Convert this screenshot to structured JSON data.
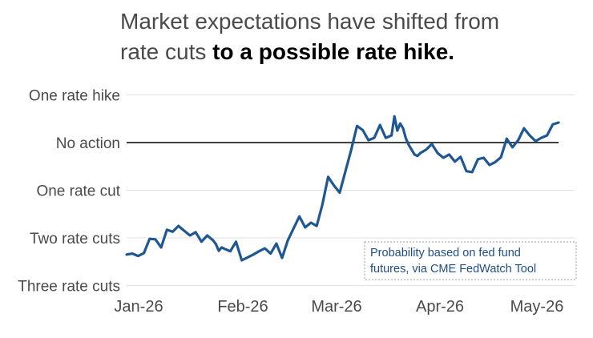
{
  "title": {
    "line1": "Market expectations have shifted from",
    "line2_plain": "rate cuts ",
    "line2_bold": "to a possible rate hike."
  },
  "note": {
    "line1": "Probability based on fed fund",
    "line2": "futures, via CME FedWatch Tool"
  },
  "colors": {
    "series": "#1f5793",
    "reference_line": "#000000",
    "grid": "#e0e0e0"
  },
  "chart_data": {
    "type": "line",
    "y_tick_values": [
      -3,
      -2,
      -1,
      0,
      1
    ],
    "y_tick_labels": [
      "Three rate cuts",
      "Two rate cuts",
      "One rate cut",
      "No action",
      "One rate hike"
    ],
    "x_tick_labels": [
      "Jan-26",
      "Feb-26",
      "Mar-26",
      "Apr-26",
      "May-26"
    ],
    "ylim": [
      -3.0,
      1.0
    ],
    "reference_y": 0,
    "grid": true,
    "series": [
      {
        "x": [
          0,
          2,
          4,
          6,
          8,
          10,
          12,
          14,
          16,
          18,
          20,
          22,
          24,
          26,
          28,
          30,
          31,
          32,
          33,
          34,
          36,
          38,
          40,
          42,
          44,
          46,
          48,
          50,
          52,
          54,
          56,
          58,
          60,
          62,
          64,
          66,
          68,
          70,
          72,
          74,
          76,
          78,
          80,
          82,
          84,
          86,
          88,
          90,
          92,
          93,
          94,
          95,
          96,
          97,
          98,
          99,
          100,
          101,
          102,
          104,
          106,
          108,
          110,
          112,
          114,
          116,
          118,
          120,
          122,
          124,
          126,
          128,
          130,
          132,
          134,
          136,
          138,
          140,
          142,
          144,
          146,
          148,
          150
        ],
        "y": [
          -2.35,
          -2.33,
          -2.38,
          -2.32,
          -2.02,
          -2.03,
          -2.2,
          -1.83,
          -1.87,
          -1.75,
          -1.85,
          -1.95,
          -1.88,
          -2.08,
          -1.95,
          -2.05,
          -2.13,
          -2.27,
          -2.2,
          -2.23,
          -2.28,
          -2.08,
          -2.47,
          -2.41,
          -2.35,
          -2.28,
          -2.22,
          -2.33,
          -2.12,
          -2.42,
          -2.05,
          -1.8,
          -1.55,
          -1.78,
          -1.68,
          -1.75,
          -1.3,
          -0.72,
          -0.9,
          -1.05,
          -0.6,
          -0.15,
          0.35,
          0.26,
          0.05,
          0.1,
          0.37,
          0.1,
          0.15,
          0.55,
          0.25,
          0.4,
          0.3,
          0.08,
          -0.05,
          -0.15,
          -0.25,
          -0.28,
          -0.22,
          -0.15,
          -0.03,
          -0.22,
          -0.32,
          -0.25,
          -0.4,
          -0.3,
          -0.6,
          -0.62,
          -0.35,
          -0.32,
          -0.47,
          -0.41,
          -0.31,
          0.08,
          -0.1,
          0.05,
          0.3,
          0.15,
          0.03,
          0.1,
          0.15,
          0.38,
          0.42
        ]
      }
    ]
  }
}
